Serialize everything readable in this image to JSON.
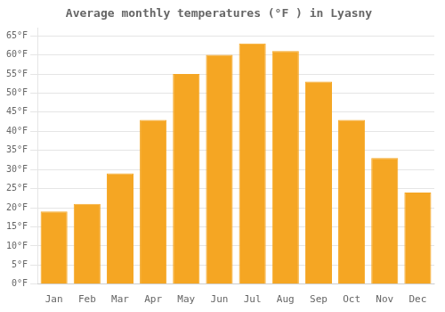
{
  "chart_data": {
    "type": "bar",
    "title": "Average monthly temperatures (°F ) in Lyasny",
    "categories": [
      "Jan",
      "Feb",
      "Mar",
      "Apr",
      "May",
      "Jun",
      "Jul",
      "Aug",
      "Sep",
      "Oct",
      "Nov",
      "Dec"
    ],
    "values": [
      19,
      21,
      29,
      43,
      55,
      60,
      63,
      61,
      53,
      43,
      33,
      24
    ],
    "color": "#F5A623",
    "ylim": [
      0,
      67
    ],
    "yticks": [
      {
        "value": 0,
        "label": "0°F"
      },
      {
        "value": 5,
        "label": "5°F"
      },
      {
        "value": 10,
        "label": "10°F"
      },
      {
        "value": 15,
        "label": "15°F"
      },
      {
        "value": 20,
        "label": "20°F"
      },
      {
        "value": 25,
        "label": "25°F"
      },
      {
        "value": 30,
        "label": "30°F"
      },
      {
        "value": 35,
        "label": "35°F"
      },
      {
        "value": 40,
        "label": "40°F"
      },
      {
        "value": 45,
        "label": "45°F"
      },
      {
        "value": 50,
        "label": "50°F"
      },
      {
        "value": 55,
        "label": "55°F"
      },
      {
        "value": 60,
        "label": "60°F"
      },
      {
        "value": 65,
        "label": "65°F"
      }
    ],
    "grid": true
  }
}
